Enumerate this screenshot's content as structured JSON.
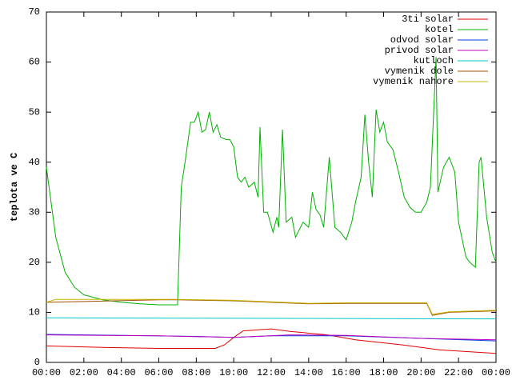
{
  "chart_data": {
    "type": "line",
    "ylabel": "teplota ve C",
    "legend": "top right",
    "grid": false,
    "xlim": [
      0,
      24
    ],
    "xticks": [
      {
        "value": 0,
        "label": "00:00"
      },
      {
        "value": 2,
        "label": "02:00"
      },
      {
        "value": 4,
        "label": "04:00"
      },
      {
        "value": 6,
        "label": "06:00"
      },
      {
        "value": 8,
        "label": "08:00"
      },
      {
        "value": 10,
        "label": "10:00"
      },
      {
        "value": 12,
        "label": "12:00"
      },
      {
        "value": 14,
        "label": "14:00"
      },
      {
        "value": 16,
        "label": "16:00"
      },
      {
        "value": 18,
        "label": "18:00"
      },
      {
        "value": 20,
        "label": "20:00"
      },
      {
        "value": 22,
        "label": "22:00"
      },
      {
        "value": 24,
        "label": "00:00"
      }
    ],
    "ylim": [
      0,
      70
    ],
    "yticks": [
      0,
      10,
      20,
      30,
      40,
      50,
      60,
      70
    ],
    "series": [
      {
        "name": "3ti solar",
        "color": "#e00000",
        "x": [
          0,
          3,
          6,
          9,
          9.5,
          10,
          10.5,
          12,
          13,
          15,
          16.5,
          19,
          21,
          24
        ],
        "values": [
          3.3,
          3.0,
          2.8,
          2.8,
          3.5,
          5,
          6.3,
          6.7,
          6.2,
          5.5,
          4.5,
          3.5,
          2.5,
          1.8
        ]
      },
      {
        "name": "kotel",
        "color": "#00b000",
        "x": [
          0,
          0.5,
          1,
          1.5,
          2,
          3,
          4,
          5,
          6,
          7,
          7.2,
          7.4,
          7.7,
          7.9,
          8.1,
          8.3,
          8.5,
          8.7,
          8.9,
          9.1,
          9.3,
          9.6,
          9.8,
          10.0,
          10.2,
          10.4,
          10.6,
          10.8,
          11.1,
          11.3,
          11.4,
          11.6,
          11.8,
          12.1,
          12.3,
          12.4,
          12.6,
          12.8,
          13.1,
          13.3,
          13.7,
          14.0,
          14.2,
          14.4,
          14.6,
          14.8,
          15.1,
          15.4,
          15.7,
          16.0,
          16.3,
          16.5,
          16.8,
          17.0,
          17.2,
          17.4,
          17.6,
          17.8,
          18.0,
          18.2,
          18.5,
          18.8,
          19.1,
          19.4,
          19.7,
          20.0,
          20.3,
          20.5,
          20.8,
          20.9,
          21.2,
          21.5,
          21.8,
          22.0,
          22.4,
          22.6,
          22.9,
          23.1,
          23.2,
          23.5,
          23.8,
          24
        ],
        "values": [
          39,
          25,
          18,
          15,
          13.5,
          12.5,
          12,
          11.7,
          11.5,
          11.5,
          35,
          40,
          48,
          48,
          50,
          46,
          46.5,
          50,
          46,
          47.5,
          45,
          44.5,
          44.5,
          43,
          37,
          36,
          37,
          35,
          36,
          33,
          47,
          30,
          30,
          26,
          29,
          27,
          46.5,
          28,
          29,
          25,
          28,
          27,
          34,
          30.5,
          29.5,
          27,
          41,
          27,
          26,
          24.5,
          28,
          32,
          37,
          49.5,
          40,
          33,
          50.5,
          46,
          48,
          44,
          42.5,
          38,
          33,
          31,
          30,
          30,
          32,
          35,
          61,
          34,
          39,
          41,
          38,
          28,
          21,
          20,
          19,
          40,
          41,
          29,
          22,
          20
        ]
      },
      {
        "name": "odvod solar",
        "color": "#0040e0",
        "x": [
          0,
          8,
          10,
          12,
          16,
          20,
          24
        ],
        "values": [
          5.6,
          5.2,
          5.0,
          5.3,
          5.3,
          4.8,
          4.3
        ]
      },
      {
        "name": "privod solar",
        "color": "#c000c0",
        "x": [
          0,
          6,
          10,
          13,
          16,
          20,
          24
        ],
        "values": [
          5.5,
          5.3,
          5.0,
          5.5,
          5.4,
          4.8,
          4.5
        ]
      },
      {
        "name": "kutloch",
        "color": "#00c8c8",
        "x": [
          0,
          24
        ],
        "values": [
          8.9,
          8.7
        ]
      },
      {
        "name": "vymenik dole",
        "color": "#a05000",
        "x": [
          0,
          6,
          7,
          10,
          14,
          16,
          20.3,
          20.6,
          21.5,
          24
        ],
        "values": [
          12,
          12.5,
          12.5,
          12.3,
          11.7,
          11.8,
          11.8,
          9.4,
          10,
          10.3
        ]
      },
      {
        "name": "vymenik nahore",
        "color": "#c8b400",
        "x": [
          0,
          0.5,
          6,
          7,
          10,
          14,
          16,
          20.3,
          20.6,
          21.5,
          24
        ],
        "values": [
          12,
          12.6,
          12.6,
          12.6,
          12.4,
          11.8,
          11.9,
          11.9,
          9.6,
          10.1,
          10.4
        ]
      }
    ]
  }
}
